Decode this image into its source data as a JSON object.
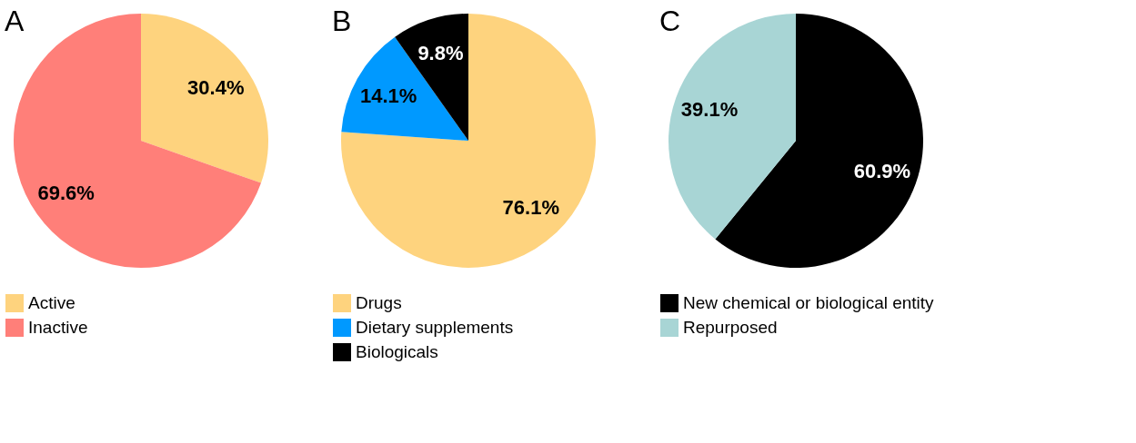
{
  "chart_data": [
    {
      "type": "pie",
      "title": "A",
      "categories": [
        "Active",
        "Inactive"
      ],
      "values": [
        30.4,
        69.6
      ],
      "colors": [
        "#fed37e",
        "#ff7f79"
      ],
      "value_labels": [
        "30.4%",
        "69.6%"
      ],
      "legend": "bottom"
    },
    {
      "type": "pie",
      "title": "B",
      "categories": [
        "Drugs",
        "Dietary supplements",
        "Biologicals"
      ],
      "values": [
        76.1,
        14.1,
        9.8
      ],
      "colors": [
        "#fed37e",
        "#0099ff",
        "#000000"
      ],
      "value_labels": [
        "76.1%",
        "14.1%",
        "9.8%"
      ],
      "legend": "bottom"
    },
    {
      "type": "pie",
      "title": "C",
      "categories": [
        "New chemical or biological entity",
        "Repurposed"
      ],
      "values": [
        60.9,
        39.1
      ],
      "colors": [
        "#000000",
        "#a8d5d5"
      ],
      "value_labels": [
        "60.9%",
        "39.1%"
      ],
      "legend": "bottom"
    }
  ]
}
